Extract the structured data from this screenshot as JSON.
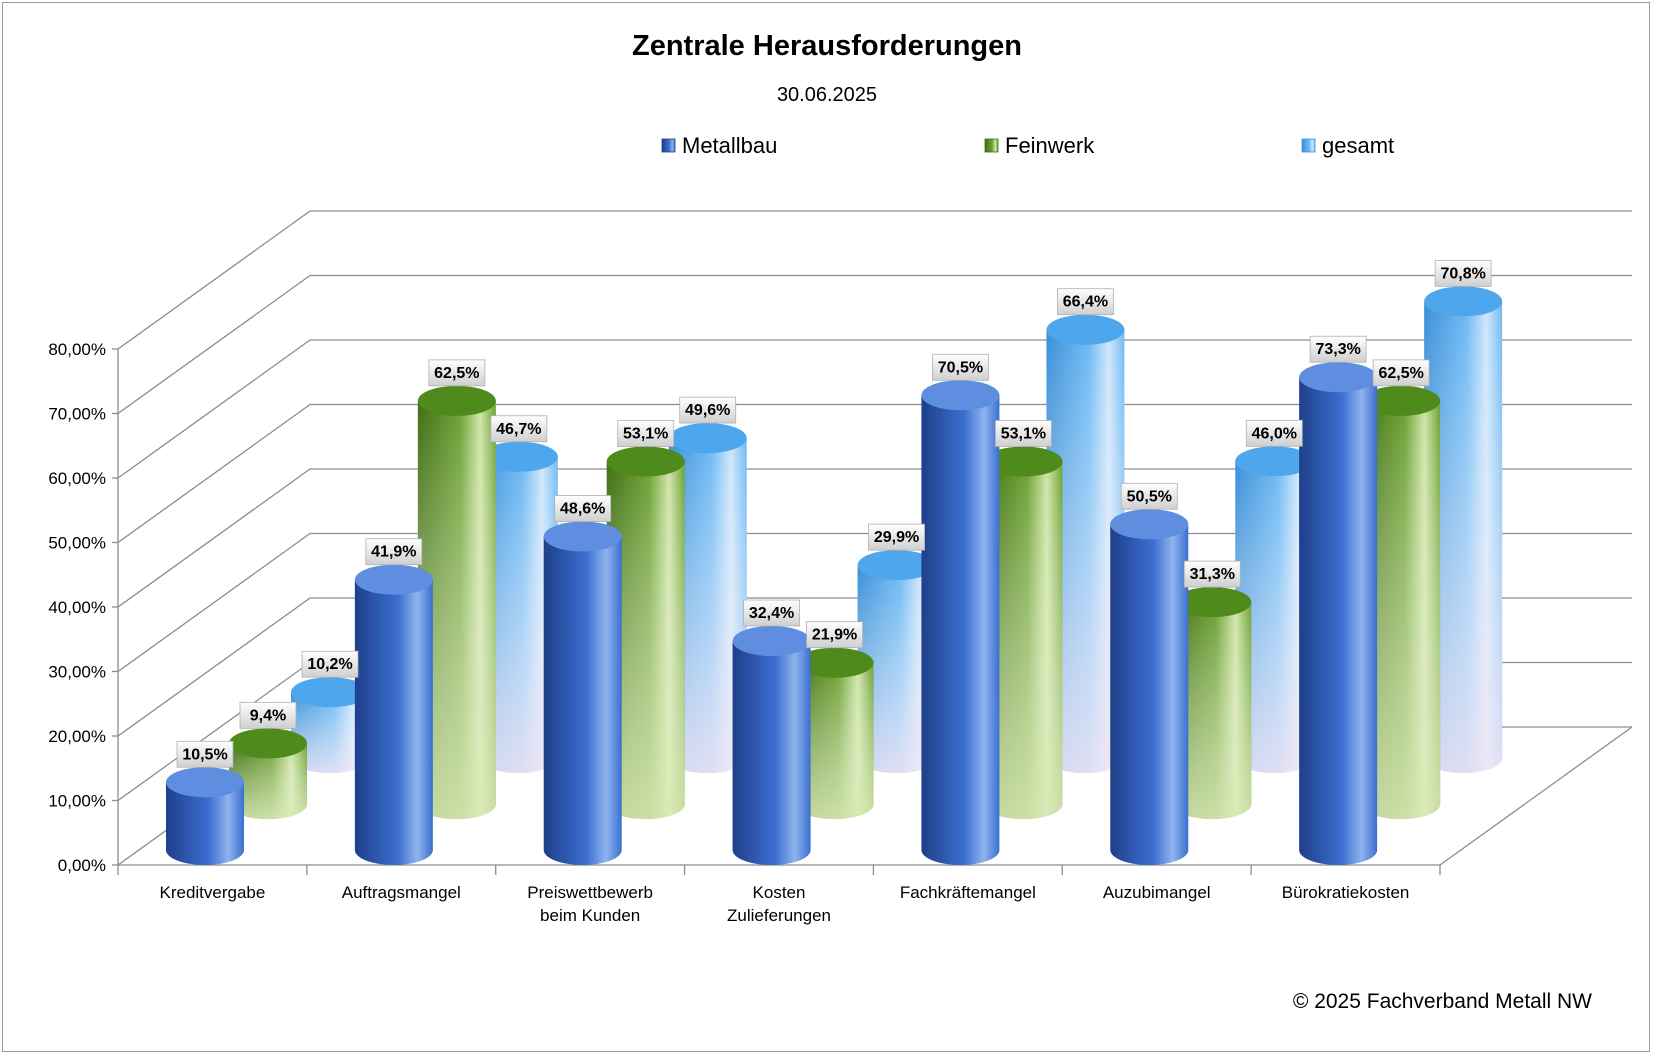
{
  "chart_data": {
    "type": "bar",
    "title": "Zentrale Herausforderungen",
    "subtitle": "30.06.2025",
    "categories": [
      [
        "Kreditvergabe"
      ],
      [
        "Auftragsmangel"
      ],
      [
        "Preiswettbewerb",
        "beim Kunden"
      ],
      [
        "Kosten",
        "Zulieferungen"
      ],
      [
        "Fachkräftemangel"
      ],
      [
        "Auzubimangel"
      ],
      [
        "Bürokratiekosten"
      ]
    ],
    "series": [
      {
        "name": "Metallbau",
        "values": [
          10.5,
          41.9,
          48.6,
          32.4,
          70.5,
          50.5,
          73.3
        ],
        "labels": [
          "10,5%",
          "41,9%",
          "48,6%",
          "32,4%",
          "70,5%",
          "50,5%",
          "73,3%"
        ]
      },
      {
        "name": "Feinwerk",
        "values": [
          9.4,
          62.5,
          53.1,
          21.9,
          53.1,
          31.3,
          62.5
        ],
        "labels": [
          "9,4%",
          "62,5%",
          "53,1%",
          "21,9%",
          "53,1%",
          "31,3%",
          "62,5%"
        ]
      },
      {
        "name": "gesamt",
        "values": [
          10.2,
          46.7,
          49.6,
          29.9,
          66.4,
          46.0,
          70.8
        ],
        "labels": [
          "10,2%",
          "46,7%",
          "49,6%",
          "29,9%",
          "66,4%",
          "46,0%",
          "70,8%"
        ]
      }
    ],
    "y_ticks": [
      "0,00%",
      "10,00%",
      "20,00%",
      "30,00%",
      "40,00%",
      "50,00%",
      "60,00%",
      "70,00%",
      "80,00%"
    ],
    "ylim": [
      0,
      80
    ],
    "grid": true,
    "legend_position": "top",
    "three_d": true,
    "colors": {
      "Metallbau": "#2f5fb8",
      "Feinwerk": "#6e9e34",
      "gesamt": "#5aaef0"
    }
  },
  "copyright": "© 2025 Fachverband Metall NW"
}
